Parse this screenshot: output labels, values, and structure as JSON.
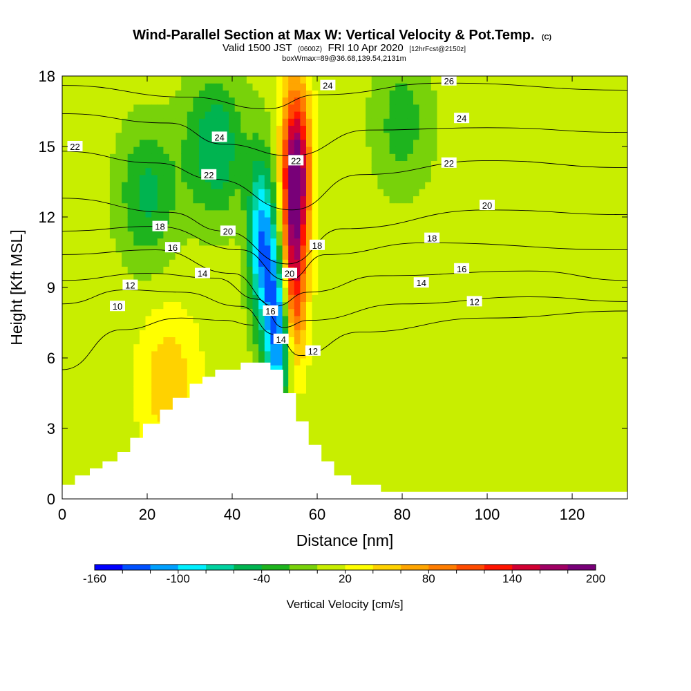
{
  "chart_data": {
    "type": "heatmap",
    "title": {
      "main": "Wind-Parallel Section at Max W: Vertical Velocity & Pot.Temp.",
      "main_unit": "(C)",
      "line2_a": "Valid 1500 JST",
      "line2_b": "(0600Z)",
      "line2_c": "FRI 10 Apr 2020",
      "line2_d": "[12hrFcst@2150z]",
      "line3": "boxWmax=89@36.68,139.54,2131m"
    },
    "xlabel": "Distance [nm]",
    "ylabel": "Height [Kft MSL]",
    "xlim": [
      0,
      133
    ],
    "ylim": [
      0,
      18
    ],
    "xticks": [
      "0",
      "20",
      "40",
      "60",
      "80",
      "100",
      "120"
    ],
    "yticks": [
      "0",
      "3",
      "6",
      "9",
      "12",
      "15",
      "18"
    ],
    "colorbar": {
      "label": "Vertical Velocity [cm/s]",
      "min": -160,
      "max": 200,
      "step": 20,
      "tick_labels": [
        "-160",
        "-100",
        "-40",
        "20",
        "80",
        "140",
        "200"
      ],
      "colors": [
        "#0000ff",
        "#0050ff",
        "#00a0ff",
        "#00f0ff",
        "#00d2a0",
        "#00b450",
        "#1eb41e",
        "#78d20a",
        "#c8ee00",
        "#ffff00",
        "#ffd200",
        "#ffa500",
        "#ff7d00",
        "#ff4b00",
        "#ff1400",
        "#d20032",
        "#a00064",
        "#780078"
      ]
    },
    "terrain": [
      [
        0,
        0.6
      ],
      [
        3,
        0.6
      ],
      [
        3,
        1
      ],
      [
        6.5,
        1
      ],
      [
        6.5,
        1.3
      ],
      [
        9.5,
        1.3
      ],
      [
        9.5,
        1.6
      ],
      [
        13,
        1.6
      ],
      [
        13,
        2
      ],
      [
        16,
        2
      ],
      [
        16,
        2.6
      ],
      [
        19,
        2.6
      ],
      [
        19,
        3.2
      ],
      [
        23,
        3.2
      ],
      [
        23,
        3.8
      ],
      [
        26,
        3.8
      ],
      [
        26,
        4.3
      ],
      [
        30,
        4.3
      ],
      [
        30,
        4.9
      ],
      [
        33,
        4.9
      ],
      [
        33,
        5.2
      ],
      [
        36,
        5.2
      ],
      [
        36,
        5.5
      ],
      [
        42,
        5.5
      ],
      [
        42,
        5.8
      ],
      [
        49,
        5.8
      ],
      [
        49,
        5.5
      ],
      [
        52,
        5.5
      ],
      [
        52,
        4.5
      ],
      [
        55,
        4.5
      ],
      [
        55,
        3.3
      ],
      [
        58,
        3.3
      ],
      [
        58,
        2.3
      ],
      [
        61,
        2.3
      ],
      [
        61,
        1.6
      ],
      [
        64,
        1.6
      ],
      [
        64,
        1
      ],
      [
        68,
        1
      ],
      [
        68,
        0.6
      ],
      [
        75,
        0.6
      ],
      [
        75,
        0.3
      ],
      [
        133,
        0.3
      ]
    ],
    "w_peaks": [
      {
        "x": 55,
        "y": 14,
        "w": 200
      },
      {
        "x": 54,
        "y": 9,
        "w": 150
      },
      {
        "x": 51,
        "y": 7.5,
        "w": -160
      },
      {
        "x": 47,
        "y": 11,
        "w": -110
      },
      {
        "x": 25,
        "y": 5,
        "w": 55
      },
      {
        "x": 36,
        "y": 15,
        "w": -60
      },
      {
        "x": 20,
        "y": 13,
        "w": -45
      },
      {
        "x": 80,
        "y": 16,
        "w": -30
      }
    ],
    "theta_contours": [
      {
        "label": "10",
        "points": [
          [
            0,
            5.5
          ],
          [
            14,
            7.2
          ],
          [
            28,
            7.7
          ],
          [
            38,
            7.6
          ],
          [
            45,
            7.4
          ]
        ]
      },
      {
        "label": "12",
        "points": [
          [
            0,
            8.3
          ],
          [
            15,
            8.9
          ],
          [
            28,
            8.8
          ],
          [
            42,
            8.2
          ],
          [
            50,
            7
          ],
          [
            56,
            6.1
          ],
          [
            70,
            7.1
          ],
          [
            100,
            7.7
          ],
          [
            133,
            8
          ]
        ]
      },
      {
        "label": "14",
        "points": [
          [
            0,
            9.3
          ],
          [
            20,
            9.6
          ],
          [
            36,
            9.4
          ],
          [
            46,
            8.5
          ],
          [
            52,
            7.3
          ],
          [
            58,
            7.6
          ],
          [
            80,
            8.3
          ],
          [
            110,
            8.6
          ],
          [
            133,
            8.4
          ]
        ]
      },
      {
        "label": "16",
        "points": [
          [
            0,
            10.4
          ],
          [
            22,
            10.6
          ],
          [
            40,
            9.6
          ],
          [
            50,
            8.2
          ],
          [
            58,
            8.8
          ],
          [
            75,
            9.5
          ],
          [
            110,
            9.7
          ],
          [
            133,
            9.3
          ]
        ]
      },
      {
        "label": "18",
        "points": [
          [
            0,
            11.4
          ],
          [
            22,
            11.6
          ],
          [
            42,
            10.6
          ],
          [
            53,
            9.3
          ],
          [
            62,
            10.4
          ],
          [
            85,
            10.9
          ],
          [
            133,
            10.6
          ]
        ]
      },
      {
        "label": "20",
        "points": [
          [
            0,
            12.8
          ],
          [
            25,
            12.2
          ],
          [
            38,
            11.4
          ],
          [
            53,
            10
          ],
          [
            66,
            11.5
          ],
          [
            100,
            12.3
          ],
          [
            133,
            12.1
          ]
        ]
      },
      {
        "label": "22",
        "points": [
          [
            0,
            14.8
          ],
          [
            22,
            14.3
          ],
          [
            36,
            13.6
          ],
          [
            54,
            12.3
          ],
          [
            70,
            13.8
          ],
          [
            100,
            14.4
          ],
          [
            133,
            14.1
          ]
        ]
      },
      {
        "label": "24",
        "points": [
          [
            0,
            16.4
          ],
          [
            25,
            16
          ],
          [
            38,
            15.1
          ],
          [
            54,
            14.6
          ],
          [
            72,
            15.7
          ],
          [
            100,
            15.8
          ],
          [
            133,
            15.6
          ]
        ]
      },
      {
        "label": "26",
        "points": [
          [
            0,
            17.6
          ],
          [
            30,
            17.1
          ],
          [
            48,
            16.6
          ],
          [
            60,
            17.2
          ],
          [
            90,
            17.7
          ],
          [
            133,
            17.4
          ]
        ]
      }
    ],
    "theta_labels": [
      {
        "label": "10",
        "x": 13,
        "y": 8.2
      },
      {
        "label": "12",
        "x": 16,
        "y": 9.1
      },
      {
        "label": "14",
        "x": 33,
        "y": 9.6
      },
      {
        "label": "16",
        "x": 26,
        "y": 10.7
      },
      {
        "label": "18",
        "x": 23,
        "y": 11.6
      },
      {
        "label": "20",
        "x": 39,
        "y": 11.4
      },
      {
        "label": "22",
        "x": 34.5,
        "y": 13.8
      },
      {
        "label": "24",
        "x": 37,
        "y": 15.4
      },
      {
        "label": "22",
        "x": 3,
        "y": 15
      },
      {
        "label": "24",
        "x": 62.5,
        "y": 17.6
      },
      {
        "label": "22",
        "x": 55,
        "y": 14.4
      },
      {
        "label": "18",
        "x": 60,
        "y": 10.8
      },
      {
        "label": "20",
        "x": 53.5,
        "y": 9.6
      },
      {
        "label": "16",
        "x": 49,
        "y": 8
      },
      {
        "label": "14",
        "x": 51.5,
        "y": 6.8
      },
      {
        "label": "12",
        "x": 59,
        "y": 6.3
      },
      {
        "label": "26",
        "x": 91,
        "y": 17.8
      },
      {
        "label": "24",
        "x": 94,
        "y": 16.2
      },
      {
        "label": "22",
        "x": 91,
        "y": 14.3
      },
      {
        "label": "20",
        "x": 100,
        "y": 12.5
      },
      {
        "label": "18",
        "x": 87,
        "y": 11.1
      },
      {
        "label": "16",
        "x": 94,
        "y": 9.8
      },
      {
        "label": "14",
        "x": 84.5,
        "y": 9.2
      },
      {
        "label": "12",
        "x": 97,
        "y": 8.4
      }
    ]
  }
}
